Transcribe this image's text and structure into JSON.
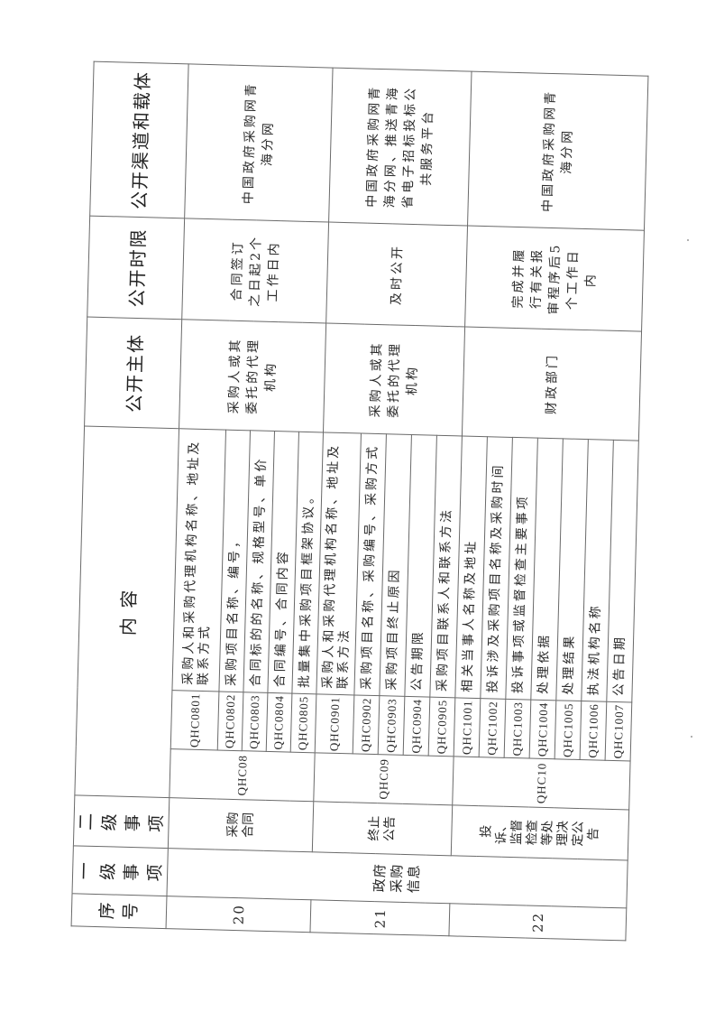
{
  "header": {
    "seq": "序号",
    "level1": "一级事项",
    "level2": "二级事项",
    "content": "内 容",
    "subject": "公开主体",
    "deadline": "公开时限",
    "channel": "公开渠道和载体"
  },
  "level1": "政府采购信息",
  "rows": [
    {
      "seq": "20",
      "level2": "采购合同",
      "code": "QHC08",
      "items": [
        {
          "code": "QHC0801",
          "text": "采购人和采购代理机构名称、地址及联系方式"
        },
        {
          "code": "QHC0802",
          "text": "采购项目名称、编号，"
        },
        {
          "code": "QHC0803",
          "text": "合同标的的名称、规格型号、单价"
        },
        {
          "code": "QHC0804",
          "text": "合同编号、合同内容"
        },
        {
          "code": "QHC0805",
          "text": "批量集中采购项目框架协议。"
        }
      ],
      "subject": "采购人或其委托的代理机构",
      "deadline": "合同签订之日起2个工作日内",
      "channel": "中国政府采购网青海分网"
    },
    {
      "seq": "21",
      "level2": "终止公告",
      "code": "QHC09",
      "items": [
        {
          "code": "QHC0901",
          "text": "采购人和采购代理机构名称、地址及联系方法"
        },
        {
          "code": "QHC0902",
          "text": "采购项目名称、采购编号、采购方式"
        },
        {
          "code": "QHC0903",
          "text": "采购项目终止原因"
        },
        {
          "code": "QHC0904",
          "text": "公告期限"
        },
        {
          "code": "QHC0905",
          "text": "采购项目联系人和联系方法"
        }
      ],
      "subject": "采购人或其委托的代理机构",
      "deadline": "及时公开",
      "channel": "中国政府采购网青海分网、推送青海省电子招标投标公共服务平台"
    },
    {
      "seq": "22",
      "level2": "投诉、监督检查等处理决定公告",
      "code": "QHC10",
      "items": [
        {
          "code": "QHC1001",
          "text": "相关当事人名称及地址"
        },
        {
          "code": "QHC1002",
          "text": "投诉涉及采购项目名称及采购时间"
        },
        {
          "code": "QHC1003",
          "text": "投诉事项或监督检查主要事项"
        },
        {
          "code": "QHC1004",
          "text": "处理依据"
        },
        {
          "code": "QHC1005",
          "text": "处理结果"
        },
        {
          "code": "QHC1006",
          "text": "执法机构名称"
        },
        {
          "code": "QHC1007",
          "text": "公告日期"
        }
      ],
      "subject": "财政部门",
      "deadline": "完成并履行有关报审程序后5个工作日内",
      "channel": "中国政府采购网青海分网"
    }
  ]
}
